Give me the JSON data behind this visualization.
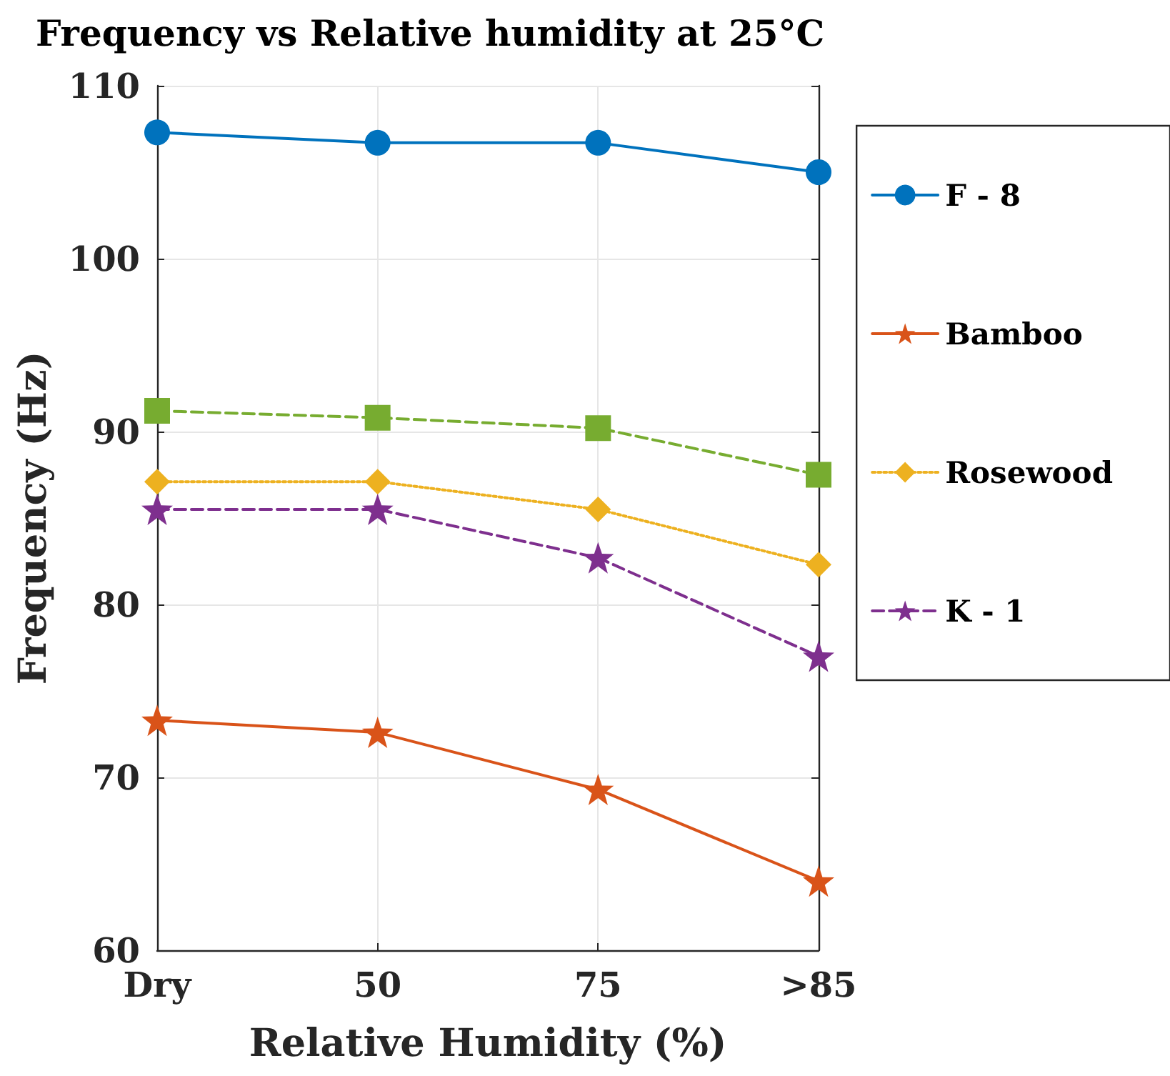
{
  "chart_data": {
    "type": "line",
    "title": "Frequency vs Relative humidity at 25°C",
    "xlabel": "Relative Humidity (%)",
    "ylabel": "Frequency (Hz)",
    "categories": [
      "Dry",
      "50",
      "75",
      ">85"
    ],
    "ylim": [
      60,
      110
    ],
    "yticks": [
      60,
      70,
      80,
      90,
      100,
      110
    ],
    "grid": true,
    "legend": "right",
    "series": [
      {
        "name": "F - 8",
        "color": "#0072bd",
        "marker": "circle",
        "line_style": "solid",
        "values": [
          107.3,
          106.7,
          106.7,
          105.0
        ]
      },
      {
        "name": "Bamboo",
        "color": "#d95319",
        "marker": "star",
        "line_style": "solid",
        "values": [
          73.3,
          72.6,
          69.3,
          64.0
        ]
      },
      {
        "name": "Rosewood",
        "color": "#edb120",
        "marker": "diamond",
        "line_style": "dotted",
        "values": [
          87.1,
          87.1,
          85.5,
          82.3
        ]
      },
      {
        "name": "K - 1",
        "color": "#7e2f8e",
        "marker": "star",
        "line_style": "dashed",
        "values": [
          85.5,
          85.5,
          82.7,
          77.0
        ]
      },
      {
        "color": "#77ac30",
        "marker": "square",
        "line_style": "dashed",
        "values": [
          91.2,
          90.8,
          90.2,
          87.5
        ]
      }
    ]
  }
}
